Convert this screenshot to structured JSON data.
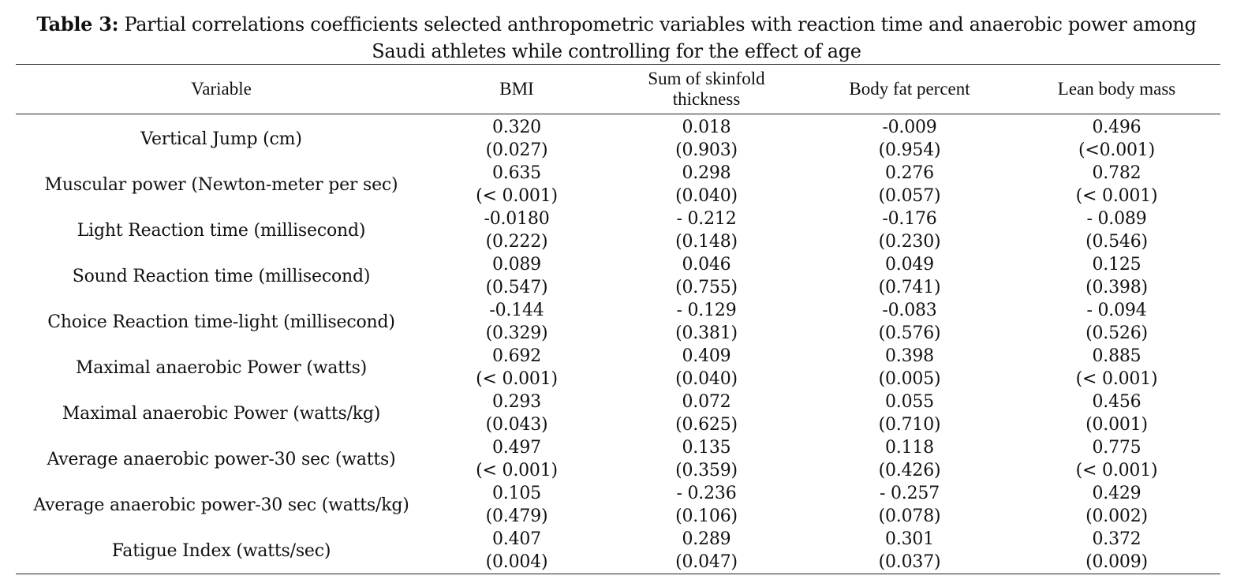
{
  "caption": {
    "label": "Table 3:",
    "text": "Partial correlations coefficients selected anthropometric variables with reaction time and anaerobic power among Saudi athletes while controlling for the effect of age"
  },
  "table": {
    "headers": [
      "Variable",
      "BMI",
      "Sum of skinfold thickness",
      "Body fat percent",
      "Lean body mass"
    ],
    "rows": [
      {
        "variable": "Vertical Jump (cm)",
        "cells": [
          {
            "coef": "0.320",
            "p": "(0.027)"
          },
          {
            "coef": "0.018",
            "p": "(0.903)"
          },
          {
            "coef": "-0.009",
            "p": "(0.954)"
          },
          {
            "coef": "0.496",
            "p": "(<0.001)"
          }
        ]
      },
      {
        "variable": "Muscular power (Newton-meter per sec)",
        "cells": [
          {
            "coef": "0.635",
            "p": "(< 0.001)"
          },
          {
            "coef": "0.298",
            "p": "(0.040)"
          },
          {
            "coef": "0.276",
            "p": "(0.057)"
          },
          {
            "coef": "0.782",
            "p": "(< 0.001)"
          }
        ]
      },
      {
        "variable": "Light Reaction time (millisecond)",
        "cells": [
          {
            "coef": "-0.0180",
            "p": "(0.222)"
          },
          {
            "coef": "- 0.212",
            "p": "(0.148)"
          },
          {
            "coef": "-0.176",
            "p": "(0.230)"
          },
          {
            "coef": "- 0.089",
            "p": "(0.546)"
          }
        ]
      },
      {
        "variable": "Sound Reaction time (millisecond)",
        "cells": [
          {
            "coef": "0.089",
            "p": "(0.547)"
          },
          {
            "coef": "0.046",
            "p": "(0.755)"
          },
          {
            "coef": "0.049",
            "p": "(0.741)"
          },
          {
            "coef": "0.125",
            "p": "(0.398)"
          }
        ]
      },
      {
        "variable": "Choice Reaction time-light (millisecond)",
        "cells": [
          {
            "coef": "-0.144",
            "p": "(0.329)"
          },
          {
            "coef": "- 0.129",
            "p": "(0.381)"
          },
          {
            "coef": "-0.083",
            "p": "(0.576)"
          },
          {
            "coef": "- 0.094",
            "p": "(0.526)"
          }
        ]
      },
      {
        "variable": "Maximal anaerobic Power (watts)",
        "cells": [
          {
            "coef": "0.692",
            "p": "(< 0.001)"
          },
          {
            "coef": "0.409",
            "p": "(0.040)"
          },
          {
            "coef": "0.398",
            "p": "(0.005)"
          },
          {
            "coef": "0.885",
            "p": "(< 0.001)"
          }
        ]
      },
      {
        "variable": "Maximal anaerobic Power (watts/kg)",
        "cells": [
          {
            "coef": "0.293",
            "p": "(0.043)"
          },
          {
            "coef": "0.072",
            "p": "(0.625)"
          },
          {
            "coef": "0.055",
            "p": "(0.710)"
          },
          {
            "coef": "0.456",
            "p": "(0.001)"
          }
        ]
      },
      {
        "variable": "Average anaerobic power-30 sec (watts)",
        "cells": [
          {
            "coef": "0.497",
            "p": "(< 0.001)"
          },
          {
            "coef": "0.135",
            "p": "(0.359)"
          },
          {
            "coef": "0.118",
            "p": "(0.426)"
          },
          {
            "coef": "0.775",
            "p": "(< 0.001)"
          }
        ]
      },
      {
        "variable": "Average anaerobic power-30 sec (watts/kg)",
        "cells": [
          {
            "coef": "0.105",
            "p": "(0.479)"
          },
          {
            "coef": "- 0.236",
            "p": "(0.106)"
          },
          {
            "coef": "- 0.257",
            "p": "(0.078)"
          },
          {
            "coef": "0.429",
            "p": "(0.002)"
          }
        ]
      },
      {
        "variable": "Fatigue Index (watts/sec)",
        "cells": [
          {
            "coef": "0.407",
            "p": "(0.004)"
          },
          {
            "coef": "0.289",
            "p": "(0.047)"
          },
          {
            "coef": "0.301",
            "p": "(0.037)"
          },
          {
            "coef": "0.372",
            "p": "(0.009)"
          }
        ]
      }
    ]
  }
}
